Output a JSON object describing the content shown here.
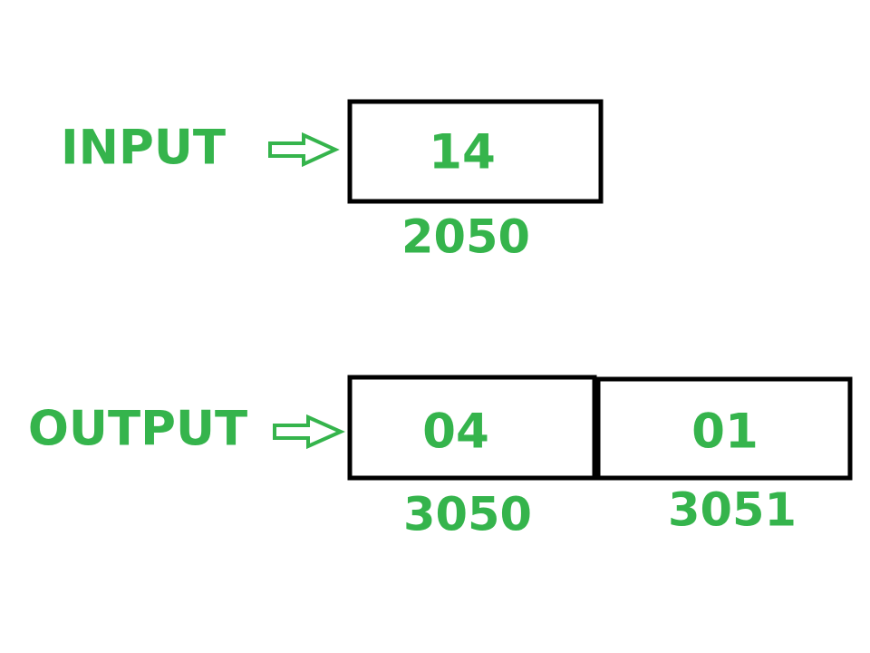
{
  "input": {
    "label": "INPUT",
    "value": "14",
    "address": "2050"
  },
  "output": {
    "label": "OUTPUT",
    "cells": [
      {
        "value": "04",
        "address": "3050"
      },
      {
        "value": "01",
        "address": "3051"
      }
    ]
  },
  "icons": {
    "pointer": "hollow-right-arrow-icon"
  },
  "colors": {
    "text": "#35b44c",
    "border": "#000000"
  }
}
